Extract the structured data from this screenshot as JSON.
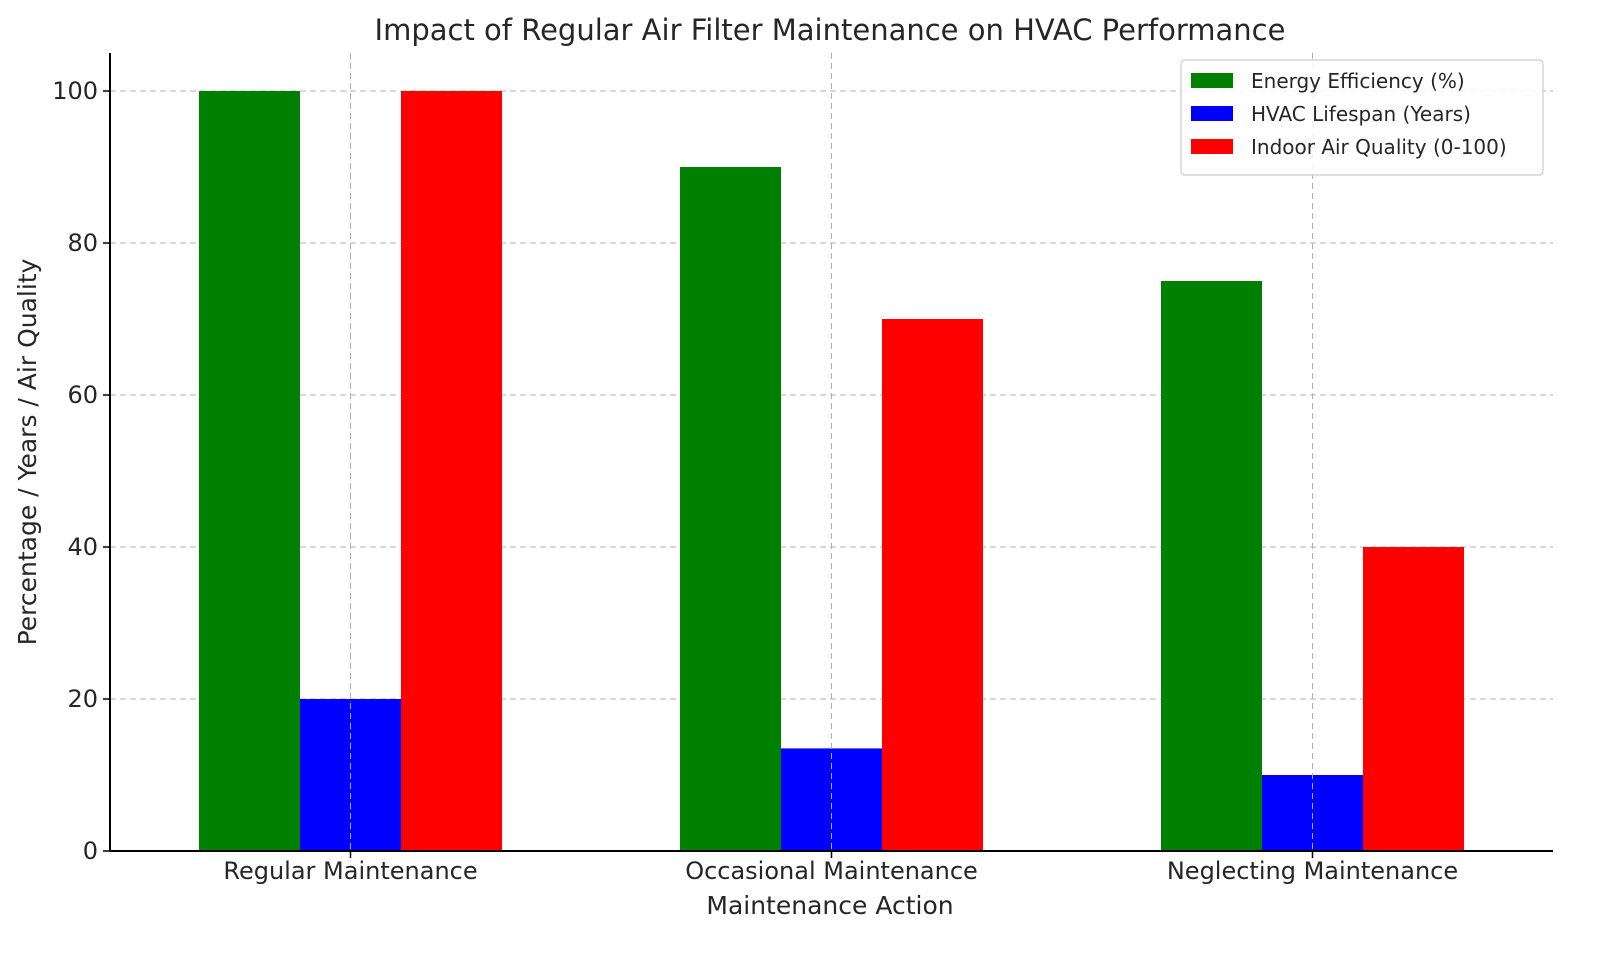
{
  "chart_data": {
    "type": "bar",
    "title": "Impact of Regular Air Filter Maintenance on HVAC Performance",
    "xlabel": "Maintenance Action",
    "ylabel": "Percentage / Years / Air Quality",
    "categories": [
      "Regular Maintenance",
      "Occasional Maintenance",
      "Neglecting Maintenance"
    ],
    "series": [
      {
        "name": "Energy Efficiency (%)",
        "color": "#008000",
        "values": [
          100,
          90,
          75
        ]
      },
      {
        "name": "HVAC Lifespan (Years)",
        "color": "#0000ff",
        "values": [
          20,
          13.5,
          10
        ]
      },
      {
        "name": "Indoor Air Quality (0-100)",
        "color": "#ff0000",
        "values": [
          100,
          70,
          40
        ]
      }
    ],
    "ylim": [
      0,
      105
    ],
    "yticks": [
      0,
      20,
      40,
      60,
      80,
      100
    ],
    "grid": true,
    "legend_position": "top-right"
  }
}
